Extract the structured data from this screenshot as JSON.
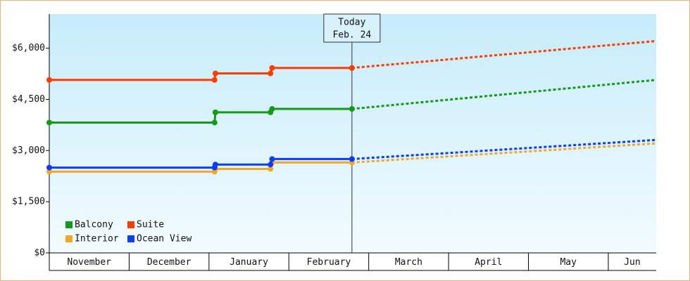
{
  "chart_data": {
    "type": "line",
    "x": [
      0,
      2.07,
      2.08,
      2.77,
      2.79,
      3.79,
      7.6
    ],
    "xlim": [
      0,
      7.6
    ],
    "xticks": [
      {
        "value": 0,
        "label": "November"
      },
      {
        "value": 1,
        "label": "December"
      },
      {
        "value": 2,
        "label": "January"
      },
      {
        "value": 3,
        "label": "February"
      },
      {
        "value": 4,
        "label": "March"
      },
      {
        "value": 5,
        "label": "April"
      },
      {
        "value": 6,
        "label": "May"
      },
      {
        "value": 7,
        "label": "Jun"
      }
    ],
    "ylim": [
      0,
      7000
    ],
    "yticks": [
      {
        "value": 0,
        "label": "$0"
      },
      {
        "value": 1500,
        "label": "$1,500"
      },
      {
        "value": 3000,
        "label": "$3,000"
      },
      {
        "value": 4500,
        "label": "$4,500"
      },
      {
        "value": 6000,
        "label": "$6,000"
      }
    ],
    "series": [
      {
        "name": "Balcony",
        "color": "#159a15",
        "values": [
          3820,
          3820,
          4120,
          4120,
          4220,
          4220,
          5070
        ]
      },
      {
        "name": "Suite",
        "color": "#ff3c00",
        "values": [
          5070,
          5070,
          5260,
          5260,
          5420,
          5420,
          6210
        ]
      },
      {
        "name": "Interior",
        "color": "#f5a623",
        "values": [
          2380,
          2380,
          2460,
          2460,
          2650,
          2650,
          3210
        ]
      },
      {
        "name": "Ocean View",
        "color": "#0a3cff",
        "values": [
          2500,
          2500,
          2590,
          2590,
          2750,
          2750,
          3310
        ]
      }
    ],
    "annotation": {
      "x": 3.79,
      "lines": [
        "Today",
        "Feb. 24"
      ]
    }
  }
}
